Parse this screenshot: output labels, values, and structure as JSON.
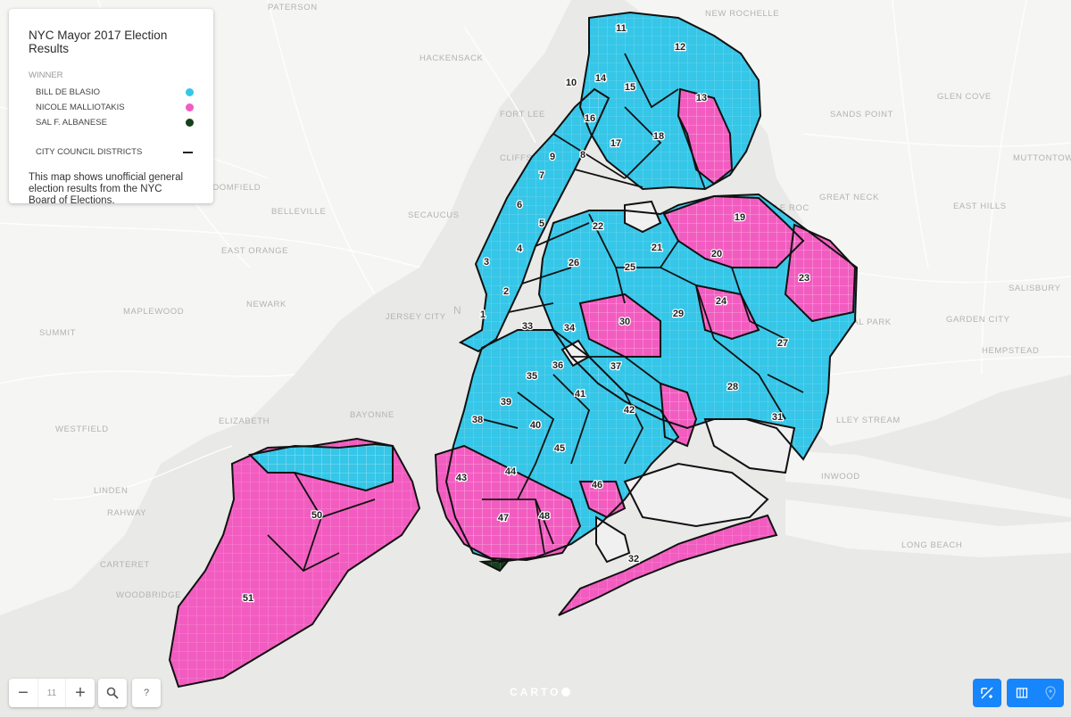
{
  "map": {
    "type": "choropleth",
    "zoom": "11",
    "colors": {
      "de_blasio": "#35c6e8",
      "malliotakis": "#f25cc0",
      "albanese": "#15401c",
      "land": "#f5f5f3",
      "water": "#e9e9e7",
      "border": "#111111"
    },
    "place_labels": [
      "PATERSON",
      "NEW ROCHELLE",
      "HACKENSACK",
      "FORT LEE",
      "GLEN COVE",
      "SANDS POINT",
      "MUTTONTOWN",
      "BLOOMFIELD",
      "CLIFFSIDE PARK",
      "BELLEVILLE",
      "SECAUCUS",
      "GREAT NECK",
      "EAST HILLS",
      "EAST ORANGE",
      "SALISBURY",
      "NEWARK",
      "JERSEY CITY",
      "MAPLEWOOD",
      "SUMMIT",
      "GARDEN CITY",
      "HEMPSTEAD",
      "ELIZABETH",
      "BAYONNE",
      "WESTFIELD",
      "LINDEN",
      "RAHWAY",
      "CARTERET",
      "WOODBRIDGE",
      "INWOOD",
      "LONG BEACH",
      "ADDLE ROC",
      "ORAL PARK",
      "LLEY STREAM"
    ],
    "district_numbers": [
      "1",
      "2",
      "3",
      "4",
      "5",
      "6",
      "7",
      "8",
      "9",
      "10",
      "11",
      "12",
      "13",
      "14",
      "15",
      "16",
      "17",
      "18",
      "19",
      "20",
      "21",
      "22",
      "23",
      "24",
      "25",
      "26",
      "27",
      "28",
      "29",
      "30",
      "31",
      "32",
      "33",
      "34",
      "35",
      "36",
      "37",
      "38",
      "39",
      "40",
      "41",
      "42",
      "43",
      "44",
      "45",
      "46",
      "47",
      "48",
      "50",
      "51"
    ],
    "city_label": "N"
  },
  "legend": {
    "title": "NYC Mayor 2017 Election Results",
    "category": "WINNER",
    "items": [
      {
        "label": "BILL DE BLASIO",
        "color": "#35c6e8"
      },
      {
        "label": "NICOLE MALLIOTAKIS",
        "color": "#f25cc0"
      },
      {
        "label": "SAL F. ALBANESE",
        "color": "#15401c"
      }
    ],
    "districts_label": "CITY COUNCIL DISTRICTS",
    "note": "This map shows unofficial general election results from the NYC Board of Elections."
  },
  "controls": {
    "zoom_in": "+",
    "zoom_out": "−",
    "zoom_level": "11",
    "search_icon": "search-icon",
    "help_label": "?",
    "attribution": "CARTO"
  }
}
